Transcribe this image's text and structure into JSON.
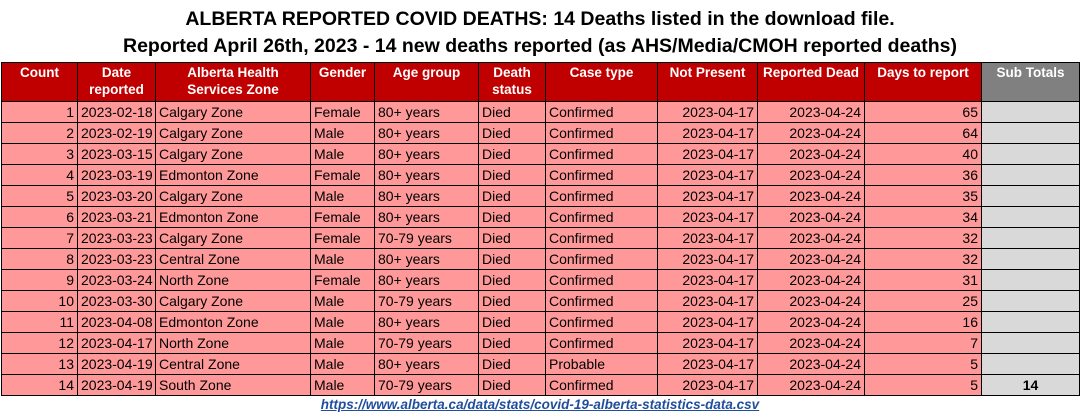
{
  "title_line1": "ALBERTA REPORTED COVID DEATHS: 14 Deaths listed in the download file.",
  "title_line2": "Reported April 26th, 2023 - 14 new deaths reported (as AHS/Media/CMOH reported deaths)",
  "headers": [
    "Count",
    "Date reported",
    "Alberta Health Services Zone",
    "Gender",
    "Age group",
    "Death status",
    "Case type",
    "Not Present",
    "Reported Dead",
    "Days to report",
    "Sub Totals"
  ],
  "rows": [
    {
      "count": "1",
      "date": "2023-02-18",
      "zone": "Calgary Zone",
      "gender": "Female",
      "age": "80+ years",
      "status": "Died",
      "case": "Confirmed",
      "not_present": "2023-04-17",
      "reported_dead": "2023-04-24",
      "days": "65",
      "subtotal": ""
    },
    {
      "count": "2",
      "date": "2023-02-19",
      "zone": "Calgary Zone",
      "gender": "Male",
      "age": "80+ years",
      "status": "Died",
      "case": "Confirmed",
      "not_present": "2023-04-17",
      "reported_dead": "2023-04-24",
      "days": "64",
      "subtotal": ""
    },
    {
      "count": "3",
      "date": "2023-03-15",
      "zone": "Calgary Zone",
      "gender": "Male",
      "age": "80+ years",
      "status": "Died",
      "case": "Confirmed",
      "not_present": "2023-04-17",
      "reported_dead": "2023-04-24",
      "days": "40",
      "subtotal": ""
    },
    {
      "count": "4",
      "date": "2023-03-19",
      "zone": "Edmonton Zone",
      "gender": "Female",
      "age": "80+ years",
      "status": "Died",
      "case": "Confirmed",
      "not_present": "2023-04-17",
      "reported_dead": "2023-04-24",
      "days": "36",
      "subtotal": ""
    },
    {
      "count": "5",
      "date": "2023-03-20",
      "zone": "Calgary Zone",
      "gender": "Male",
      "age": "80+ years",
      "status": "Died",
      "case": "Confirmed",
      "not_present": "2023-04-17",
      "reported_dead": "2023-04-24",
      "days": "35",
      "subtotal": ""
    },
    {
      "count": "6",
      "date": "2023-03-21",
      "zone": "Edmonton Zone",
      "gender": "Female",
      "age": "80+ years",
      "status": "Died",
      "case": "Confirmed",
      "not_present": "2023-04-17",
      "reported_dead": "2023-04-24",
      "days": "34",
      "subtotal": ""
    },
    {
      "count": "7",
      "date": "2023-03-23",
      "zone": "Calgary Zone",
      "gender": "Female",
      "age": "70-79 years",
      "status": "Died",
      "case": "Confirmed",
      "not_present": "2023-04-17",
      "reported_dead": "2023-04-24",
      "days": "32",
      "subtotal": ""
    },
    {
      "count": "8",
      "date": "2023-03-23",
      "zone": "Central Zone",
      "gender": "Male",
      "age": "80+ years",
      "status": "Died",
      "case": "Confirmed",
      "not_present": "2023-04-17",
      "reported_dead": "2023-04-24",
      "days": "32",
      "subtotal": ""
    },
    {
      "count": "9",
      "date": "2023-03-24",
      "zone": "North Zone",
      "gender": "Female",
      "age": "80+ years",
      "status": "Died",
      "case": "Confirmed",
      "not_present": "2023-04-17",
      "reported_dead": "2023-04-24",
      "days": "31",
      "subtotal": ""
    },
    {
      "count": "10",
      "date": "2023-03-30",
      "zone": "Calgary Zone",
      "gender": "Male",
      "age": "70-79 years",
      "status": "Died",
      "case": "Confirmed",
      "not_present": "2023-04-17",
      "reported_dead": "2023-04-24",
      "days": "25",
      "subtotal": ""
    },
    {
      "count": "11",
      "date": "2023-04-08",
      "zone": "Edmonton Zone",
      "gender": "Male",
      "age": "80+ years",
      "status": "Died",
      "case": "Confirmed",
      "not_present": "2023-04-17",
      "reported_dead": "2023-04-24",
      "days": "16",
      "subtotal": ""
    },
    {
      "count": "12",
      "date": "2023-04-17",
      "zone": "North Zone",
      "gender": "Male",
      "age": "70-79 years",
      "status": "Died",
      "case": "Confirmed",
      "not_present": "2023-04-17",
      "reported_dead": "2023-04-24",
      "days": "7",
      "subtotal": ""
    },
    {
      "count": "13",
      "date": "2023-04-19",
      "zone": "Central Zone",
      "gender": "Male",
      "age": "80+ years",
      "status": "Died",
      "case": "Probable",
      "not_present": "2023-04-17",
      "reported_dead": "2023-04-24",
      "days": "5",
      "subtotal": ""
    },
    {
      "count": "14",
      "date": "2023-04-19",
      "zone": "South Zone",
      "gender": "Male",
      "age": "70-79 years",
      "status": "Died",
      "case": "Confirmed",
      "not_present": "2023-04-17",
      "reported_dead": "2023-04-24",
      "days": "5",
      "subtotal": "14"
    }
  ],
  "source_link": "https://www.alberta.ca/data/stats/covid-19-alberta-statistics-data.csv",
  "colors": {
    "header_bg": "#c00000",
    "header_text": "#ffffff",
    "row_bg": "#ff9999",
    "subtotal_header_bg": "#808080",
    "subtotal_cell_bg": "#d9d9d9",
    "link": "#1f4e9c"
  }
}
